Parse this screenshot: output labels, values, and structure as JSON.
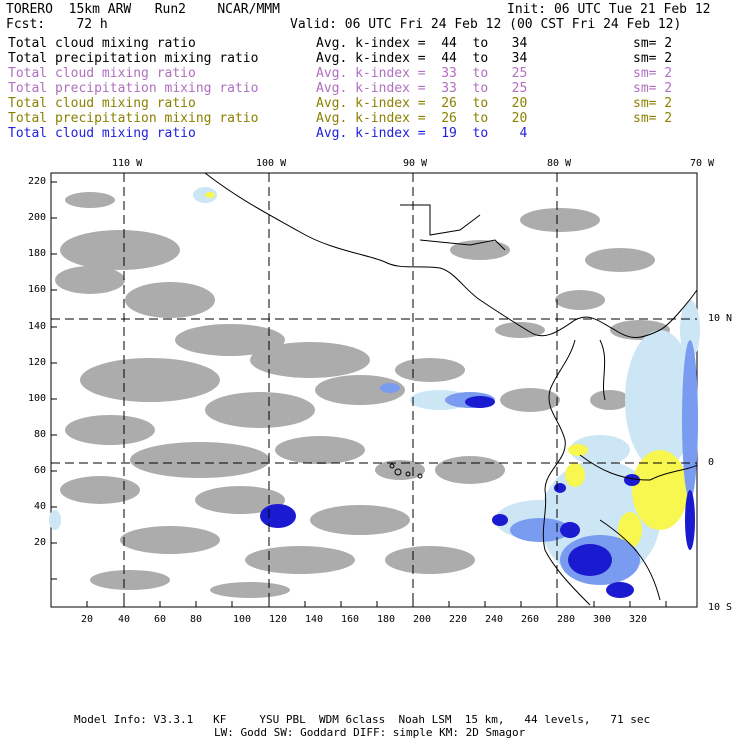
{
  "header": {
    "model": "TORERO  15km ARW   Run2    NCAR/MMM",
    "init": "Init: 06 UTC Tue 21 Feb 12",
    "fcst": "Fcst:    72 h",
    "valid": "Valid: 06 UTC Fri 24 Feb 12 (00 CST Fri 24 Feb 12)"
  },
  "legend": [
    {
      "field": "Total cloud mixing ratio",
      "kindex": "Avg. k-index =  44  to   34",
      "sm": "sm= 2",
      "color": "#000000"
    },
    {
      "field": "Total precipitation mixing ratio",
      "kindex": "Avg. k-index =  44  to   34",
      "sm": "sm= 2",
      "color": "#000000"
    },
    {
      "field": "Total cloud mixing ratio",
      "kindex": "Avg. k-index =  33  to   25",
      "sm": "sm= 2",
      "color": "#b070c0"
    },
    {
      "field": "Total precipitation mixing ratio",
      "kindex": "Avg. k-index =  33  to   25",
      "sm": "sm= 2",
      "color": "#b070c0"
    },
    {
      "field": "Total cloud mixing ratio",
      "kindex": "Avg. k-index =  26  to   20",
      "sm": "sm= 2",
      "color": "#8c8000"
    },
    {
      "field": "Total precipitation mixing ratio",
      "kindex": "Avg. k-index =  26  to   20",
      "sm": "sm= 2",
      "color": "#8c8000"
    },
    {
      "field": "Total cloud mixing ratio",
      "kindex": "Avg. k-index =  19  to    4",
      "sm": "",
      "color": "#2020e0"
    }
  ],
  "map": {
    "lon_labels": [
      "110 W",
      "100 W",
      "90 W",
      "80 W",
      "70 W"
    ],
    "lat_labels": [
      "10 N",
      "0",
      "10 S"
    ],
    "x_ticks": [
      "20",
      "40",
      "60",
      "80",
      "100",
      "120",
      "140",
      "160",
      "180",
      "200",
      "220",
      "240",
      "260",
      "280",
      "300",
      "320"
    ],
    "y_ticks": [
      "220",
      "200",
      "180",
      "160",
      "140",
      "120",
      "100",
      "80",
      "60",
      "40",
      "20"
    ],
    "colors": {
      "cloud_gray": "#a8a8a8",
      "light_blue": "#cce6f5",
      "mid_blue": "#7a9cf0",
      "deep_blue": "#1a1ad0",
      "yellow": "#f7f750",
      "coast": "#000000"
    }
  },
  "footer": {
    "line1": "Model Info: V3.3.1   KF     YSU PBL  WDM 6class  Noah LSM  15 km,   44 levels,   71 sec",
    "line2": "LW: Godd SW: Goddard DIFF: simple KM: 2D Smagor"
  }
}
